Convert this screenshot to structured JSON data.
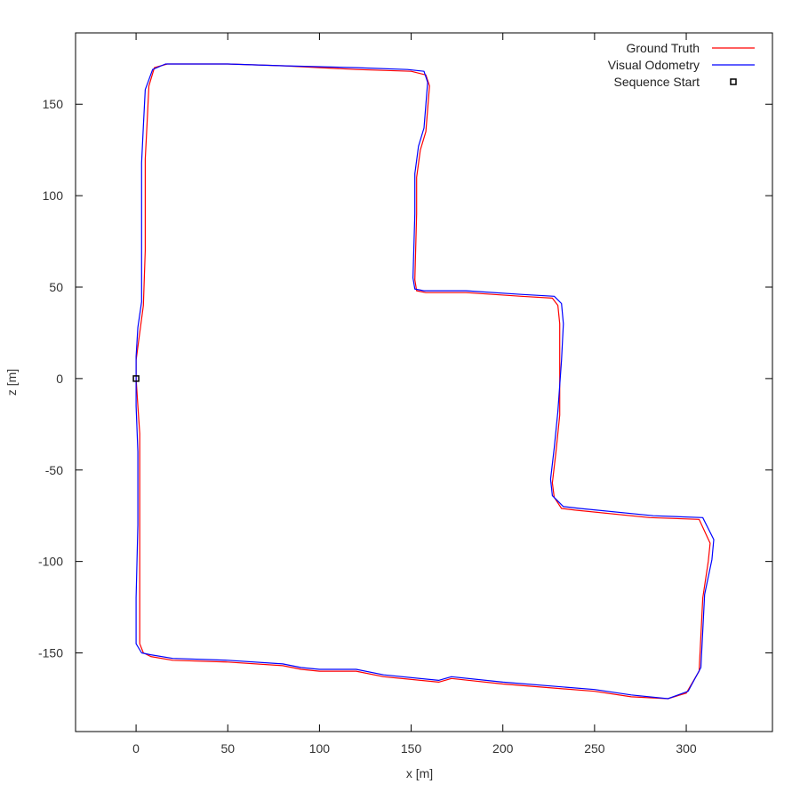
{
  "chart_data": {
    "type": "line",
    "title": "",
    "xlabel": "x [m]",
    "ylabel": "z [m]",
    "xlim": [
      -33,
      347
    ],
    "ylim": [
      -193,
      189
    ],
    "x_ticks": [
      0,
      50,
      100,
      150,
      200,
      250,
      300
    ],
    "y_ticks": [
      -150,
      -100,
      -50,
      0,
      50,
      100,
      150
    ],
    "grid": false,
    "legend_position": "top-right",
    "series": [
      {
        "name": "Ground Truth",
        "color": "#ff0000",
        "points": [
          [
            0,
            0
          ],
          [
            1,
            -15
          ],
          [
            2,
            -30
          ],
          [
            2,
            -60
          ],
          [
            2,
            -100
          ],
          [
            2,
            -145
          ],
          [
            4,
            -150
          ],
          [
            8,
            -152
          ],
          [
            20,
            -154
          ],
          [
            50,
            -155
          ],
          [
            80,
            -157
          ],
          [
            90,
            -159
          ],
          [
            100,
            -160
          ],
          [
            120,
            -160
          ],
          [
            135,
            -163
          ],
          [
            165,
            -166
          ],
          [
            172,
            -164
          ],
          [
            200,
            -167
          ],
          [
            250,
            -171
          ],
          [
            270,
            -174
          ],
          [
            290,
            -175
          ],
          [
            300,
            -172
          ],
          [
            307,
            -160
          ],
          [
            309,
            -120
          ],
          [
            312,
            -100
          ],
          [
            313,
            -90
          ],
          [
            307,
            -77
          ],
          [
            280,
            -76
          ],
          [
            240,
            -72
          ],
          [
            232,
            -71
          ],
          [
            228,
            -65
          ],
          [
            227,
            -57
          ],
          [
            229,
            -40
          ],
          [
            231,
            -20
          ],
          [
            231,
            10
          ],
          [
            231,
            30
          ],
          [
            230,
            40
          ],
          [
            227,
            44
          ],
          [
            210,
            45
          ],
          [
            180,
            47
          ],
          [
            158,
            47
          ],
          [
            153,
            48
          ],
          [
            152,
            54
          ],
          [
            153,
            90
          ],
          [
            153,
            110
          ],
          [
            155,
            125
          ],
          [
            158,
            135
          ],
          [
            160,
            160
          ],
          [
            158,
            166
          ],
          [
            150,
            168
          ],
          [
            120,
            169
          ],
          [
            80,
            171
          ],
          [
            50,
            172
          ],
          [
            25,
            172
          ],
          [
            17,
            172
          ],
          [
            10,
            170
          ],
          [
            7,
            160
          ],
          [
            6,
            140
          ],
          [
            5,
            120
          ],
          [
            5,
            70
          ],
          [
            4,
            40
          ],
          [
            2,
            25
          ],
          [
            0,
            10
          ],
          [
            0,
            0
          ]
        ]
      },
      {
        "name": "Visual Odometry",
        "color": "#0000ff",
        "points": [
          [
            0,
            0
          ],
          [
            0,
            -15
          ],
          [
            1,
            -40
          ],
          [
            1,
            -80
          ],
          [
            0,
            -120
          ],
          [
            0,
            -145
          ],
          [
            3,
            -150
          ],
          [
            8,
            -151
          ],
          [
            20,
            -153
          ],
          [
            50,
            -154
          ],
          [
            80,
            -156
          ],
          [
            90,
            -158
          ],
          [
            100,
            -159
          ],
          [
            120,
            -159
          ],
          [
            135,
            -162
          ],
          [
            165,
            -165
          ],
          [
            172,
            -163
          ],
          [
            200,
            -166
          ],
          [
            250,
            -170
          ],
          [
            270,
            -173
          ],
          [
            290,
            -175
          ],
          [
            301,
            -171
          ],
          [
            308,
            -158
          ],
          [
            310,
            -118
          ],
          [
            314,
            -99
          ],
          [
            315,
            -88
          ],
          [
            309,
            -76
          ],
          [
            282,
            -75
          ],
          [
            242,
            -71
          ],
          [
            233,
            -70
          ],
          [
            227,
            -64
          ],
          [
            226,
            -55
          ],
          [
            228,
            -38
          ],
          [
            230,
            -18
          ],
          [
            232,
            10
          ],
          [
            233,
            30
          ],
          [
            232,
            41
          ],
          [
            228,
            45
          ],
          [
            210,
            46
          ],
          [
            180,
            48
          ],
          [
            157,
            48
          ],
          [
            152,
            49
          ],
          [
            151,
            55
          ],
          [
            152,
            90
          ],
          [
            152,
            112
          ],
          [
            154,
            127
          ],
          [
            157,
            137
          ],
          [
            159,
            162
          ],
          [
            157,
            168
          ],
          [
            148,
            169
          ],
          [
            120,
            170
          ],
          [
            80,
            171
          ],
          [
            50,
            172
          ],
          [
            25,
            172
          ],
          [
            16,
            172
          ],
          [
            9,
            169
          ],
          [
            5,
            158
          ],
          [
            4,
            138
          ],
          [
            3,
            118
          ],
          [
            3,
            70
          ],
          [
            3,
            42
          ],
          [
            1,
            28
          ],
          [
            0,
            12
          ],
          [
            0,
            0
          ]
        ]
      },
      {
        "name": "Sequence Start",
        "color": "#000000",
        "marker": "square",
        "points": [
          [
            0,
            0
          ]
        ]
      }
    ]
  }
}
